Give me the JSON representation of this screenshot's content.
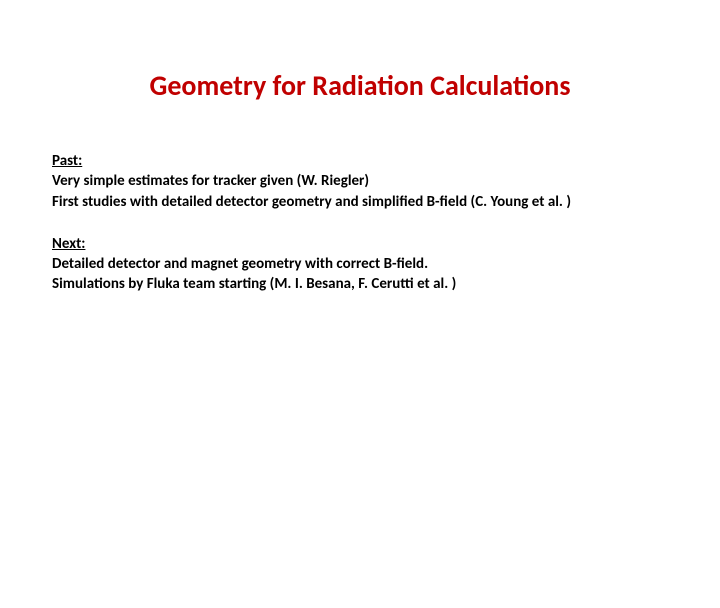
{
  "title": {
    "text": "Geometry for Radiation Calculations",
    "color": "#c00000",
    "fontsize": 28
  },
  "content": {
    "color": "#000000",
    "fontsize": 15,
    "lineheight": 1.35
  },
  "sections": [
    {
      "heading": "Past:",
      "lines": [
        "Very simple estimates for tracker given (W. Riegler)",
        "First studies with detailed detector geometry and simplified B-field  (C. Young et al. )"
      ]
    },
    {
      "heading": "Next:",
      "lines": [
        "Detailed detector and magnet geometry with correct B-field.",
        "Simulations by Fluka team starting (M. I. Besana, F. Cerutti et al. )"
      ]
    }
  ]
}
